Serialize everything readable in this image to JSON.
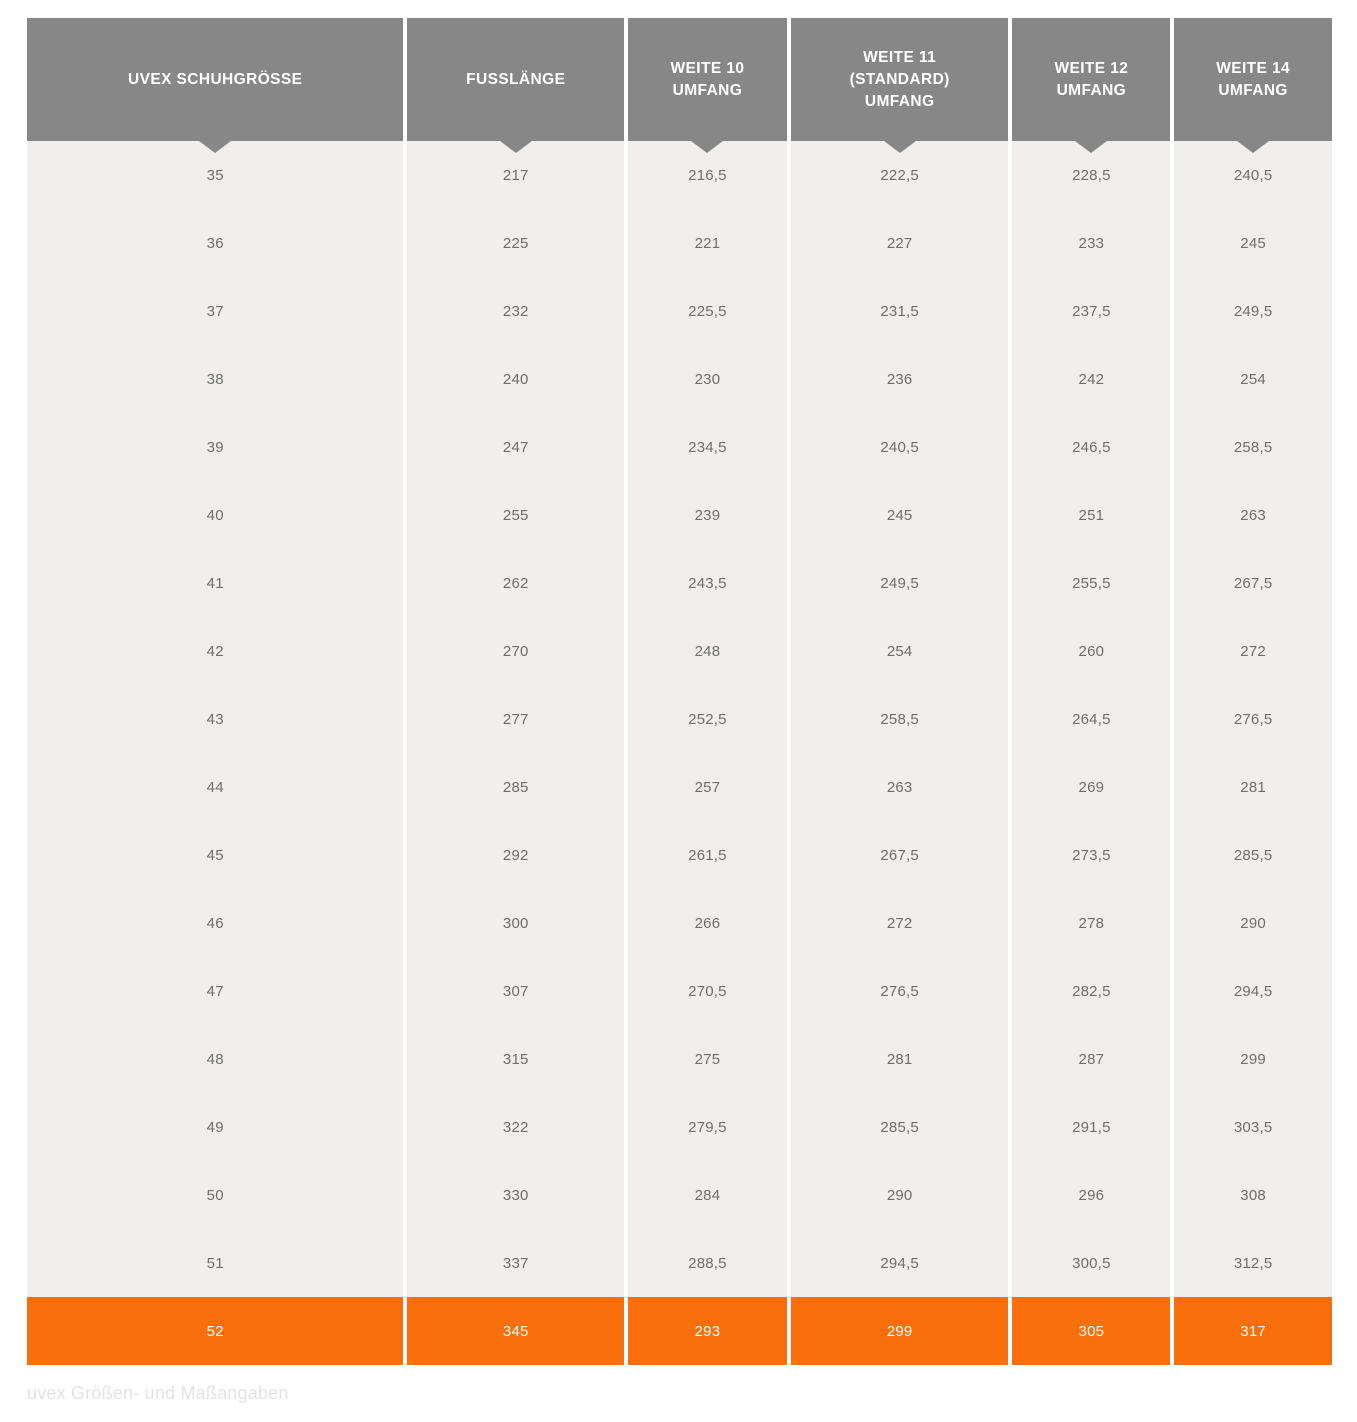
{
  "chart_data": {
    "type": "table",
    "title": "uvex Größen- und Maßangaben",
    "columns": [
      {
        "lines": [
          "UVEX SCHUHGRÖSSE"
        ]
      },
      {
        "lines": [
          "FUSSLÄNGE"
        ]
      },
      {
        "lines": [
          "WEITE 10",
          "UMFANG"
        ]
      },
      {
        "lines": [
          "WEITE 11",
          "(STANDARD)",
          "UMFANG"
        ]
      },
      {
        "lines": [
          "WEITE 12",
          "UMFANG"
        ]
      },
      {
        "lines": [
          "WEITE 14",
          "UMFANG"
        ]
      }
    ],
    "rows": [
      [
        "35",
        "217",
        "216,5",
        "222,5",
        "228,5",
        "240,5"
      ],
      [
        "36",
        "225",
        "221",
        "227",
        "233",
        "245"
      ],
      [
        "37",
        "232",
        "225,5",
        "231,5",
        "237,5",
        "249,5"
      ],
      [
        "38",
        "240",
        "230",
        "236",
        "242",
        "254"
      ],
      [
        "39",
        "247",
        "234,5",
        "240,5",
        "246,5",
        "258,5"
      ],
      [
        "40",
        "255",
        "239",
        "245",
        "251",
        "263"
      ],
      [
        "41",
        "262",
        "243,5",
        "249,5",
        "255,5",
        "267,5"
      ],
      [
        "42",
        "270",
        "248",
        "254",
        "260",
        "272"
      ],
      [
        "43",
        "277",
        "252,5",
        "258,5",
        "264,5",
        "276,5"
      ],
      [
        "44",
        "285",
        "257",
        "263",
        "269",
        "281"
      ],
      [
        "45",
        "292",
        "261,5",
        "267,5",
        "273,5",
        "285,5"
      ],
      [
        "46",
        "300",
        "266",
        "272",
        "278",
        "290"
      ],
      [
        "47",
        "307",
        "270,5",
        "276,5",
        "282,5",
        "294,5"
      ],
      [
        "48",
        "315",
        "275",
        "281",
        "287",
        "299"
      ],
      [
        "49",
        "322",
        "279,5",
        "285,5",
        "291,5",
        "303,5"
      ],
      [
        "50",
        "330",
        "284",
        "290",
        "296",
        "308"
      ],
      [
        "51",
        "337",
        "288,5",
        "294,5",
        "300,5",
        "312,5"
      ],
      [
        "52",
        "345",
        "293",
        "299",
        "305",
        "317"
      ]
    ],
    "highlight_row_index": 17,
    "layout": {
      "grid": false,
      "legend": "none"
    }
  },
  "caption": "uvex Größen- und Maßangaben",
  "colors": {
    "header_bg": "#878787",
    "row_bg": "#f0efed",
    "cell_text": "#6e6e6e",
    "highlight_bg": "#f96e0d",
    "highlight_text": "#ffffff",
    "header_text": "#ffffff",
    "caption_color": "#e3e3e2",
    "page_bg": "#ffffff"
  }
}
